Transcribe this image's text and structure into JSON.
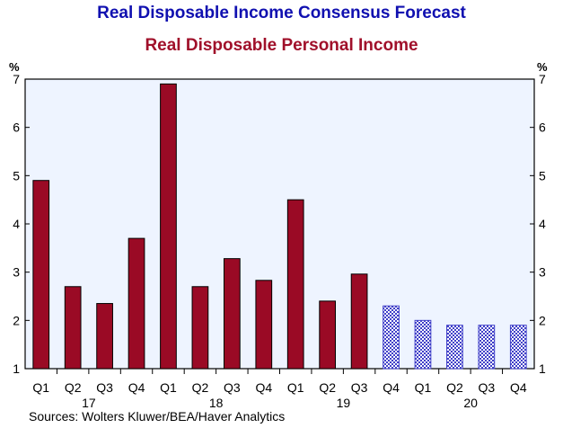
{
  "chart_data": {
    "type": "bar",
    "title": "Real Disposable Income Consensus Forecast",
    "subtitle": "Real Disposable Personal Income",
    "ylabel": "%",
    "ylim": [
      1,
      7
    ],
    "yticks": [
      1,
      2,
      3,
      4,
      5,
      6,
      7
    ],
    "grid": false,
    "categories": [
      "Q1",
      "Q2",
      "Q3",
      "Q4",
      "Q1",
      "Q2",
      "Q3",
      "Q4",
      "Q1",
      "Q2",
      "Q3",
      "Q4",
      "Q1",
      "Q2",
      "Q3",
      "Q4"
    ],
    "years": [
      {
        "label": "17",
        "start": 0,
        "end": 3
      },
      {
        "label": "18",
        "start": 4,
        "end": 7
      },
      {
        "label": "19",
        "start": 8,
        "end": 11
      },
      {
        "label": "20",
        "start": 12,
        "end": 15
      }
    ],
    "values": [
      4.9,
      2.7,
      2.35,
      3.7,
      6.9,
      2.7,
      3.28,
      2.83,
      4.5,
      2.4,
      2.96,
      2.3,
      2.0,
      1.9,
      1.9,
      1.9
    ],
    "forecast_start_index": 11,
    "colors": {
      "actual": "#9a0a25",
      "forecast": "#4040c8",
      "plot_bg": "#eef4ff"
    }
  },
  "source": "Sources:   Wolters Kluwer/BEA/Haver Analytics"
}
